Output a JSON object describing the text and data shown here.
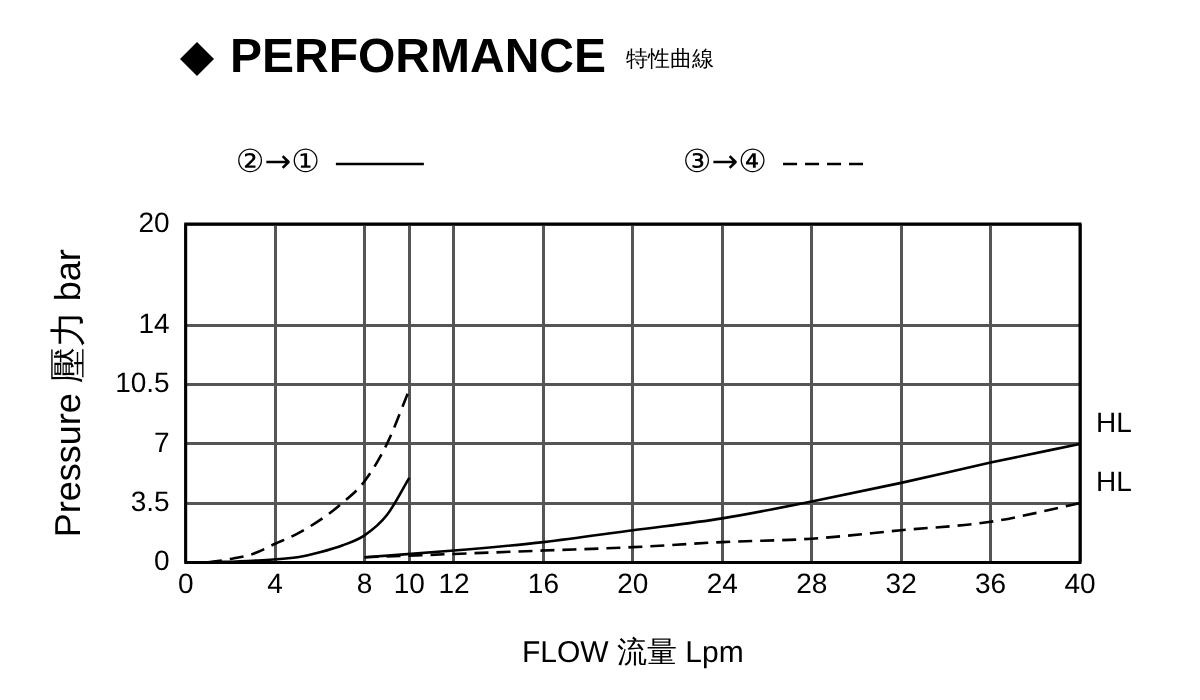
{
  "chart_data": {
    "type": "line",
    "title": "PERFORMANCE",
    "subtitle": "特性曲線",
    "xlabel": "FLOW 流量 Lpm",
    "ylabel": "Pressure 壓力 bar",
    "xlim": [
      0,
      40
    ],
    "xticks": [
      0,
      4,
      8,
      10,
      12,
      16,
      20,
      24,
      28,
      32,
      36,
      40
    ],
    "ylim": [
      0,
      20
    ],
    "yticks": [
      0,
      3.5,
      7,
      10.5,
      14,
      20
    ],
    "grid": true,
    "legend": "top",
    "marker": "none",
    "series": [
      {
        "name": "②→①",
        "color": "#000000",
        "line_style": "solid",
        "x": [
          8,
          12,
          16,
          20,
          24,
          28,
          32,
          36,
          40
        ],
        "values": [
          0.3,
          0.7,
          1.2,
          1.9,
          2.6,
          3.6,
          4.7,
          5.9,
          7
        ]
      },
      {
        "color": "#000000",
        "line_style": "solid",
        "x": [
          1,
          3,
          5,
          6,
          7,
          8,
          9,
          10
        ],
        "values": [
          0,
          0.1,
          0.3,
          0.6,
          1,
          1.6,
          2.8,
          5
        ]
      },
      {
        "name": "③→④",
        "color": "#000000",
        "line_style": "dashed",
        "x": [
          8,
          12,
          16,
          20,
          24,
          28,
          32,
          36,
          40
        ],
        "values": [
          0.3,
          0.5,
          0.7,
          0.9,
          1.2,
          1.4,
          1.9,
          2.4,
          3.5
        ]
      },
      {
        "color": "#000000",
        "line_style": "dashed",
        "x": [
          1,
          2,
          3,
          4,
          5,
          6,
          7,
          8,
          9,
          10
        ],
        "values": [
          0,
          0.2,
          0.5,
          1.1,
          1.7,
          2.5,
          3.5,
          4.8,
          7,
          10.2
        ]
      }
    ],
    "annotations": [
      {
        "text": "HL",
        "x": 40,
        "y": 7
      },
      {
        "text": "HL",
        "x": 40,
        "y": 3.5
      }
    ]
  }
}
